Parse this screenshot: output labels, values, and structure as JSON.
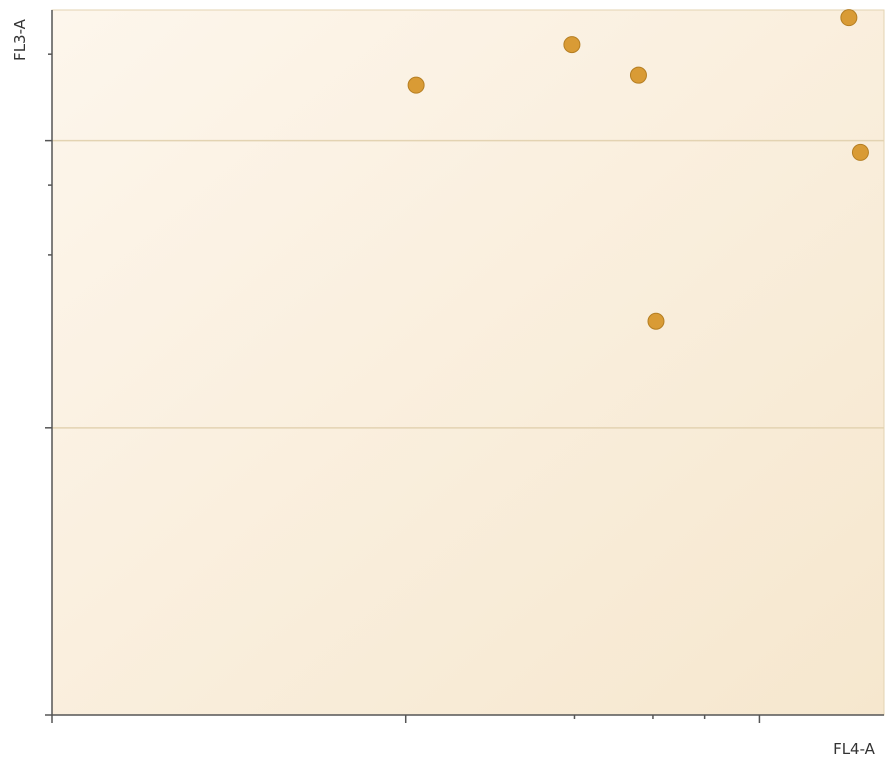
{
  "chart_data": {
    "type": "scatter",
    "title": "",
    "xlabel": "FL4-A",
    "ylabel": "FL3-A",
    "x_scale": "log",
    "y_scale": "log",
    "xlim": [
      0.1,
      22.5
    ],
    "ylim": [
      0.1,
      28.5
    ],
    "grid": true,
    "tick_labels_shown": false,
    "series": [
      {
        "points": [
          {
            "x": 1.07,
            "y": 15.6
          },
          {
            "x": 2.95,
            "y": 21.6
          },
          {
            "x": 4.55,
            "y": 16.9
          },
          {
            "x": 5.1,
            "y": 2.35
          },
          {
            "x": 17.9,
            "y": 26.8
          },
          {
            "x": 19.3,
            "y": 9.1
          }
        ]
      }
    ],
    "colors": {
      "marker_fill": "#D99B35",
      "marker_stroke": "#B57E22",
      "plot_bg_start": "#FDF6EC",
      "plot_bg_end": "#F6E7CE",
      "gridline": "#E3D3B2",
      "axis": "#555555"
    }
  }
}
